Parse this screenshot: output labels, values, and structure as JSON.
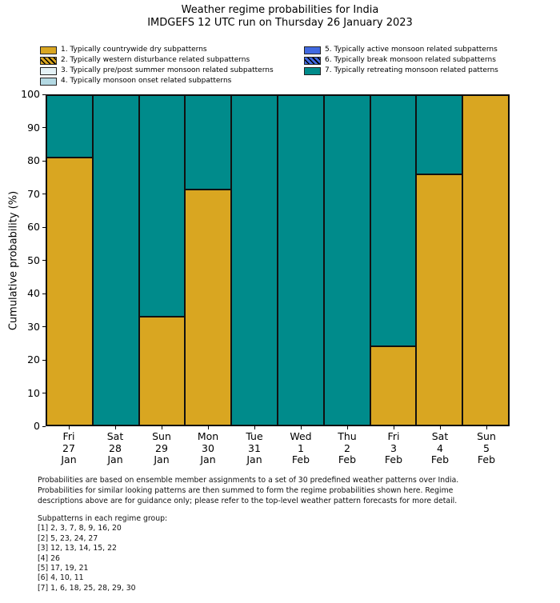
{
  "chart_data": {
    "type": "bar",
    "stacked": true,
    "title": "Weather regime probabilities for India",
    "subtitle": "IMDGEFS 12 UTC run on Thursday 26 January 2023",
    "ylabel": "Cumulative probability (%)",
    "ylim": [
      0,
      100
    ],
    "yticks": [
      0,
      10,
      20,
      30,
      40,
      50,
      60,
      70,
      80,
      90,
      100
    ],
    "grid": false,
    "legend_position": "top",
    "categories": [
      {
        "day": "Fri",
        "date": "27",
        "month": "Jan"
      },
      {
        "day": "Sat",
        "date": "28",
        "month": "Jan"
      },
      {
        "day": "Sun",
        "date": "29",
        "month": "Jan"
      },
      {
        "day": "Mon",
        "date": "30",
        "month": "Jan"
      },
      {
        "day": "Tue",
        "date": "31",
        "month": "Jan"
      },
      {
        "day": "Wed",
        "date": "1",
        "month": "Feb"
      },
      {
        "day": "Thu",
        "date": "2",
        "month": "Feb"
      },
      {
        "day": "Fri",
        "date": "3",
        "month": "Feb"
      },
      {
        "day": "Sat",
        "date": "4",
        "month": "Feb"
      },
      {
        "day": "Sun",
        "date": "5",
        "month": "Feb"
      }
    ],
    "series": [
      {
        "name": "1. Typically countrywide dry subpatterns",
        "color": "#D9A621",
        "values": [
          81,
          0,
          33,
          71.5,
          0,
          0,
          0,
          24,
          76,
          100
        ]
      },
      {
        "name": "7. Typically retreating monsoon related patterns",
        "color": "#008B8B",
        "values": [
          19,
          100,
          67,
          28.5,
          100,
          100,
          100,
          76,
          24,
          0
        ]
      }
    ],
    "legend": [
      {
        "label": "1. Typically countrywide dry subpatterns",
        "color": "#D9A621",
        "hatch": false,
        "column": "left"
      },
      {
        "label": "2. Typically western disturbance related subpatterns",
        "color": "#D9A621",
        "hatch": true,
        "column": "left"
      },
      {
        "label": "3. Typically pre/post summer monsoon related subpatterns",
        "color": "#E4F2F7",
        "hatch": false,
        "column": "left"
      },
      {
        "label": "4. Typically monsoon onset related subpatterns",
        "color": "#B3D9E3",
        "hatch": false,
        "column": "left"
      },
      {
        "label": "5. Typically active monsoon related subpatterns",
        "color": "#4169E1",
        "hatch": false,
        "column": "right"
      },
      {
        "label": "6. Typically break monsoon related subpatterns",
        "color": "#4169E1",
        "hatch": true,
        "column": "right"
      },
      {
        "label": "7. Typically retreating monsoon related patterns",
        "color": "#008B8B",
        "hatch": false,
        "column": "right"
      }
    ]
  },
  "footnote": {
    "lines": [
      "Probabilities are based on ensemble member assignments to a set of 30 predefined weather patterns over India.",
      "Probabilities for similar looking patterns are then summed to form the regime probabilities shown here. Regime",
      "descriptions above are for guidance only; please refer to the top-level weather pattern forecasts for more detail."
    ]
  },
  "subpatterns": {
    "heading": "Subpatterns in each regime group:",
    "groups": [
      "[1] 2, 3, 7, 8, 9, 16, 20",
      "[2] 5, 23, 24, 27",
      "[3] 12, 13, 14, 15, 22",
      "[4] 26",
      "[5] 17, 19, 21",
      "[6] 4, 10, 11",
      "[7] 1, 6, 18, 25, 28, 29, 30"
    ]
  }
}
